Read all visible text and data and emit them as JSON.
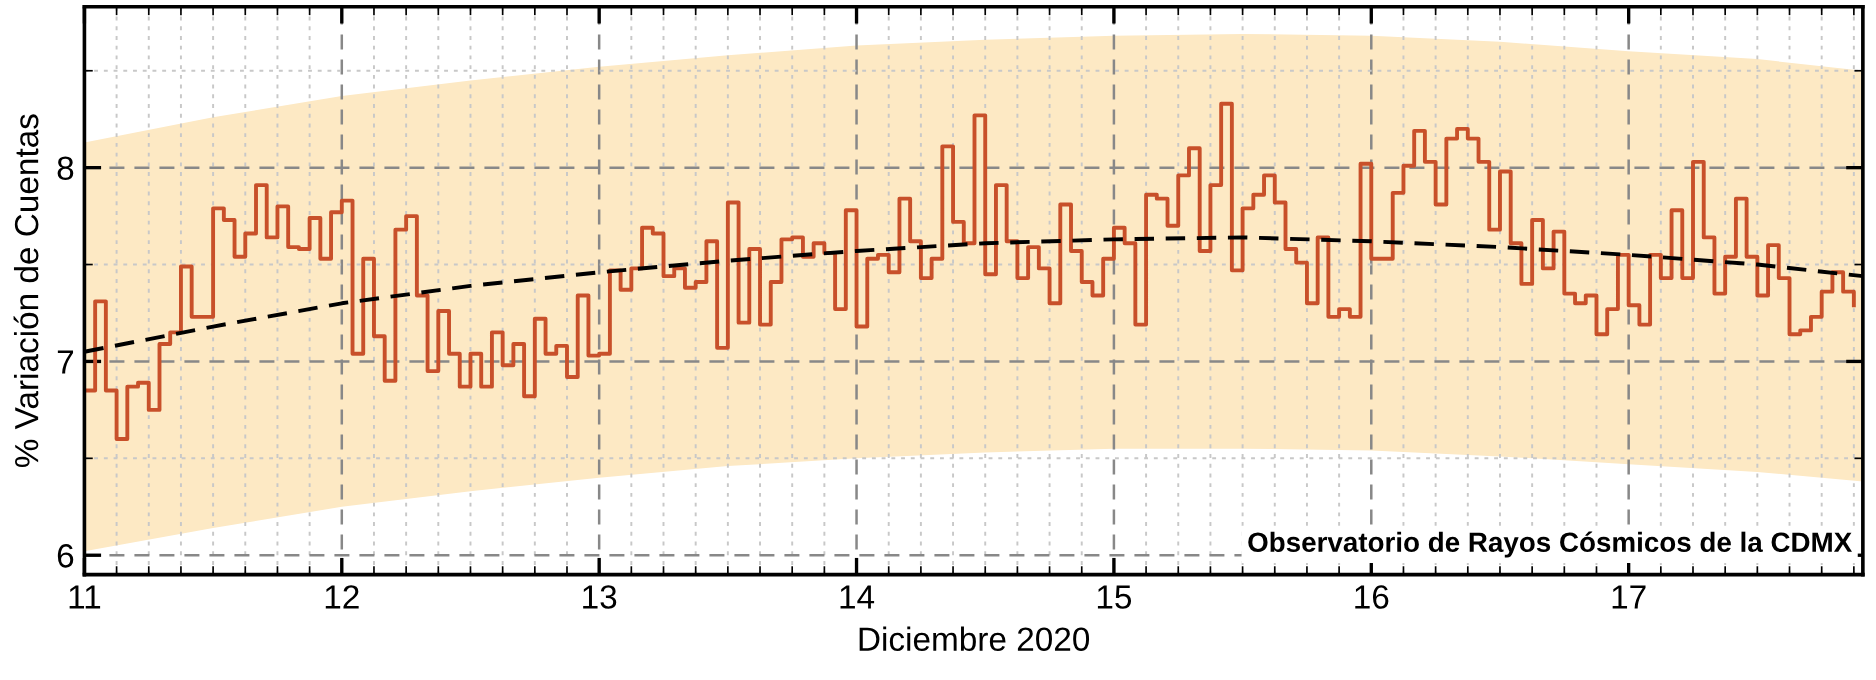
{
  "chart_data": {
    "type": "step",
    "xlabel": "Diciembre 2020",
    "ylabel": "% Variación de Cuentas",
    "xlim": [
      11,
      17.91
    ],
    "xticks": [
      11,
      12,
      13,
      14,
      15,
      16,
      17
    ],
    "ylim": [
      5.9,
      8.83
    ],
    "yticks": [
      6,
      7,
      8
    ],
    "grid": true,
    "legend": false,
    "annotations": [
      "Observatorio de Rayos Cósmicos de la CDMX"
    ],
    "series": [
      {
        "type": "line",
        "color": "#000000",
        "line_style": "dashed",
        "x": [
          11,
          11.5,
          12,
          12.5,
          13,
          13.5,
          14,
          14.5,
          15,
          15.5,
          16,
          16.5,
          17,
          17.5,
          17.91
        ],
        "values": [
          7.05,
          7.18,
          7.3,
          7.39,
          7.46,
          7.52,
          7.57,
          7.61,
          7.63,
          7.64,
          7.62,
          7.59,
          7.55,
          7.5,
          7.44
        ],
        "lower": [
          6.02,
          6.14,
          6.25,
          6.33,
          6.4,
          6.46,
          6.5,
          6.53,
          6.55,
          6.55,
          6.54,
          6.51,
          6.47,
          6.43,
          6.38
        ],
        "upper": [
          8.13,
          8.26,
          8.37,
          8.45,
          8.52,
          8.58,
          8.63,
          8.66,
          8.68,
          8.69,
          8.68,
          8.65,
          8.6,
          8.56,
          8.5
        ]
      },
      {
        "color": "#c8502a",
        "x": [
          11.0,
          11.0417,
          11.0833,
          11.125,
          11.1667,
          11.2083,
          11.25,
          11.2917,
          11.3333,
          11.375,
          11.4167,
          11.4583,
          11.5,
          11.5417,
          11.5833,
          11.625,
          11.6667,
          11.7083,
          11.75,
          11.7917,
          11.8333,
          11.875,
          11.9167,
          11.9583,
          12.0,
          12.0417,
          12.0833,
          12.125,
          12.1667,
          12.2083,
          12.25,
          12.2917,
          12.3333,
          12.375,
          12.4167,
          12.4583,
          12.5,
          12.5417,
          12.5833,
          12.625,
          12.6667,
          12.7083,
          12.75,
          12.7917,
          12.8333,
          12.875,
          12.9167,
          12.9583,
          13.0,
          13.0417,
          13.0833,
          13.125,
          13.1667,
          13.2083,
          13.25,
          13.2917,
          13.3333,
          13.375,
          13.4167,
          13.4583,
          13.5,
          13.5417,
          13.5833,
          13.625,
          13.6667,
          13.7083,
          13.75,
          13.7917,
          13.8333,
          13.875,
          13.9167,
          13.9583,
          14.0,
          14.0417,
          14.0833,
          14.125,
          14.1667,
          14.2083,
          14.25,
          14.2917,
          14.3333,
          14.375,
          14.4167,
          14.4583,
          14.5,
          14.5417,
          14.5833,
          14.625,
          14.6667,
          14.7083,
          14.75,
          14.7917,
          14.8333,
          14.875,
          14.9167,
          14.9583,
          15.0,
          15.0417,
          15.0833,
          15.125,
          15.1667,
          15.2083,
          15.25,
          15.2917,
          15.3333,
          15.375,
          15.4167,
          15.4583,
          15.5,
          15.5417,
          15.5833,
          15.625,
          15.6667,
          15.7083,
          15.75,
          15.7917,
          15.8333,
          15.875,
          15.9167,
          15.9583,
          16.0,
          16.0417,
          16.0833,
          16.125,
          16.1667,
          16.2083,
          16.25,
          16.2917,
          16.3333,
          16.375,
          16.4167,
          16.4583,
          16.5,
          16.5417,
          16.5833,
          16.625,
          16.6667,
          16.7083,
          16.75,
          16.7917,
          16.8333,
          16.875,
          16.9167,
          16.9583,
          17.0,
          17.0417,
          17.0833,
          17.125,
          17.1667,
          17.2083,
          17.25,
          17.2917,
          17.3333,
          17.375,
          17.4167,
          17.4583,
          17.5,
          17.5417,
          17.5833,
          17.625,
          17.6667,
          17.7083,
          17.75,
          17.7917,
          17.8333,
          17.875
        ],
        "values": [
          6.85,
          7.31,
          6.85,
          6.6,
          6.87,
          6.89,
          6.75,
          7.09,
          7.15,
          7.49,
          7.23,
          7.23,
          7.79,
          7.73,
          7.54,
          7.66,
          7.91,
          7.64,
          7.8,
          7.59,
          7.58,
          7.74,
          7.53,
          7.77,
          7.83,
          7.04,
          7.53,
          7.13,
          6.9,
          7.68,
          7.75,
          7.34,
          6.95,
          7.26,
          7.04,
          6.87,
          7.04,
          6.87,
          7.15,
          6.98,
          7.09,
          6.82,
          7.22,
          7.04,
          7.08,
          6.92,
          7.34,
          7.03,
          7.04,
          7.47,
          7.37,
          7.48,
          7.69,
          7.66,
          7.44,
          7.48,
          7.38,
          7.41,
          7.62,
          7.07,
          7.82,
          7.2,
          7.58,
          7.19,
          7.41,
          7.63,
          7.64,
          7.54,
          7.61,
          7.56,
          7.27,
          7.78,
          7.18,
          7.53,
          7.55,
          7.46,
          7.84,
          7.62,
          7.43,
          7.53,
          8.11,
          7.72,
          7.61,
          8.27,
          7.45,
          7.91,
          7.62,
          7.43,
          7.59,
          7.48,
          7.3,
          7.81,
          7.57,
          7.41,
          7.34,
          7.53,
          7.69,
          7.61,
          7.19,
          7.86,
          7.84,
          7.7,
          7.96,
          8.1,
          7.57,
          7.91,
          8.33,
          7.47,
          7.79,
          7.86,
          7.96,
          7.82,
          7.58,
          7.51,
          7.3,
          7.64,
          7.23,
          7.27,
          7.23,
          8.02,
          7.53,
          7.53,
          7.87,
          8.01,
          8.19,
          8.03,
          7.81,
          8.15,
          8.2,
          8.15,
          8.03,
          7.68,
          7.98,
          7.61,
          7.4,
          7.73,
          7.48,
          7.67,
          7.35,
          7.3,
          7.34,
          7.14,
          7.27,
          7.55,
          7.29,
          7.19,
          7.55,
          7.43,
          7.78,
          7.43,
          8.03,
          7.64,
          7.35,
          7.54,
          7.84,
          7.54,
          7.34,
          7.6,
          7.43,
          7.14,
          7.16,
          7.23,
          7.36,
          7.46,
          7.36,
          7.29
        ]
      }
    ]
  }
}
